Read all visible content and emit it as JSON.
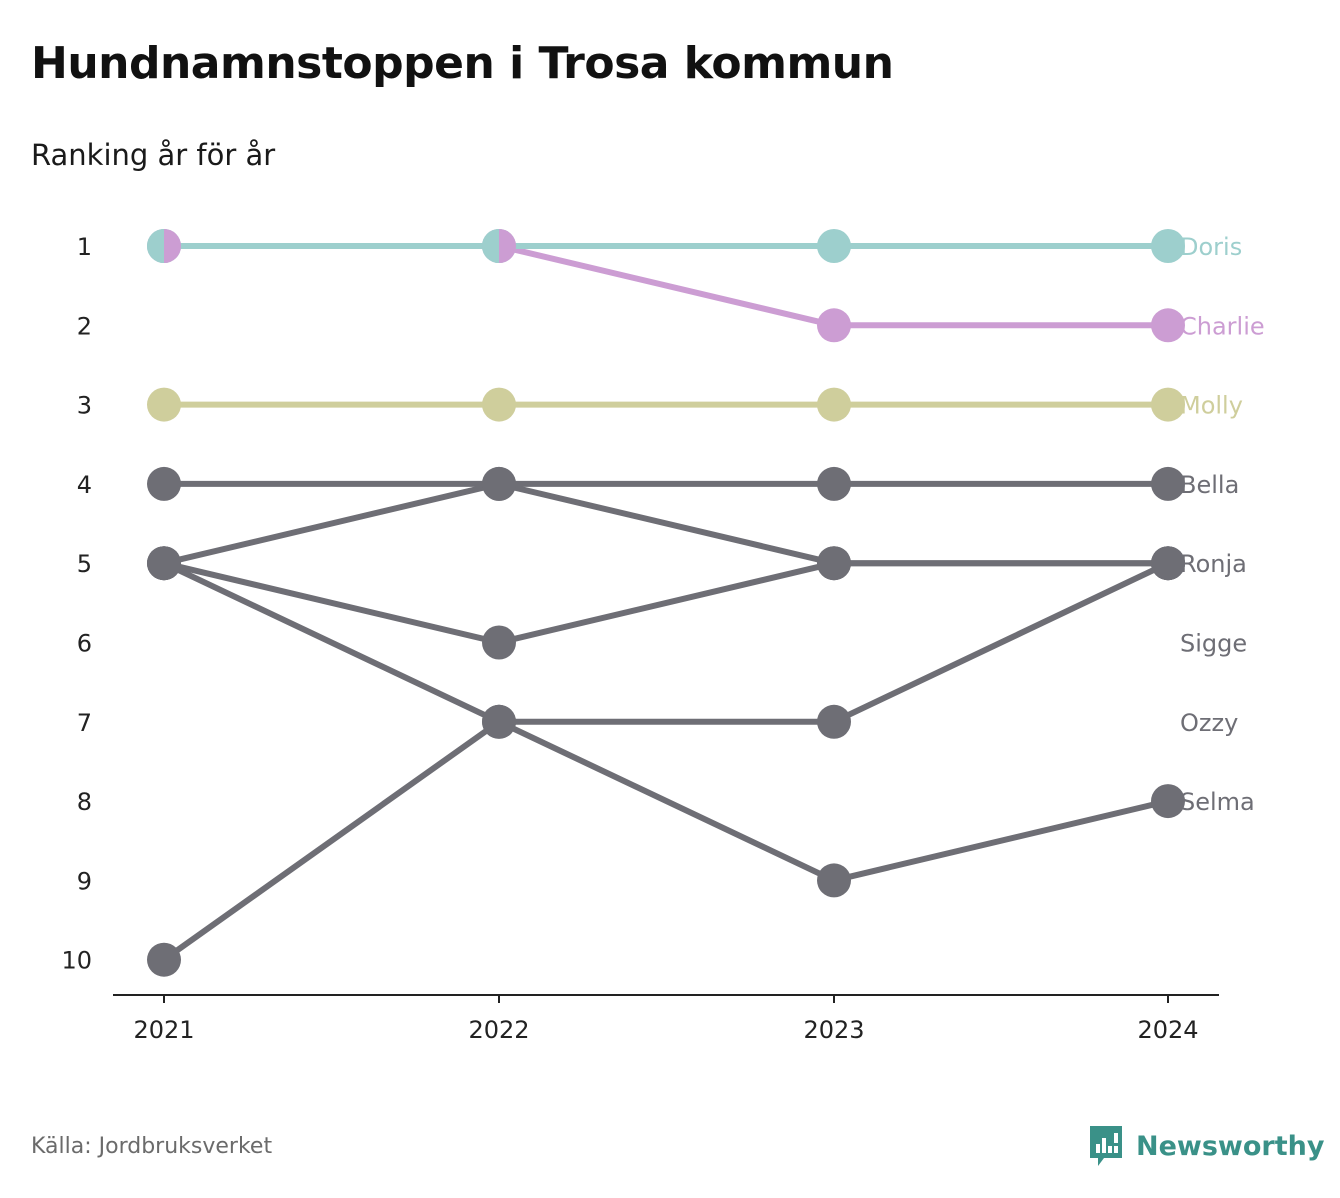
{
  "title": "Hundnamnstoppen i Trosa kommun",
  "subtitle": "Ranking år för år",
  "source": "Källa: Jordbruksverket",
  "brand": {
    "name": "Newsworthy",
    "logo_icon": "newsworthy-bar-chart-icon",
    "color": "#3a9188"
  },
  "chart_data": {
    "type": "line",
    "chart_kind": "bump chart (ranking)",
    "x": [
      "2021",
      "2022",
      "2023",
      "2024"
    ],
    "y_ticks": [
      "1",
      "2",
      "3",
      "4",
      "5",
      "6",
      "7",
      "8",
      "9",
      "10"
    ],
    "ylim": [
      1,
      10
    ],
    "y_reversed": true,
    "grid": false,
    "series_label_placement": "right end of each line",
    "series": [
      {
        "name": "Doris",
        "ranks": [
          1,
          1,
          1,
          1
        ],
        "color": "#9dcfcd"
      },
      {
        "name": "Charlie",
        "ranks": [
          1,
          1,
          2,
          2
        ],
        "color": "#cc9dd3"
      },
      {
        "name": "Molly",
        "ranks": [
          3,
          3,
          3,
          3
        ],
        "color": "#cfce9c"
      },
      {
        "name": "Bella",
        "ranks": [
          4,
          4,
          4,
          4
        ],
        "color": "#6e6e75"
      },
      {
        "name": "Ronja",
        "ranks": [
          10,
          7,
          7,
          5
        ],
        "color": "#6e6e75"
      },
      {
        "name": "Sigge",
        "ranks": [
          5,
          4,
          5,
          5
        ],
        "color": "#6e6e75"
      },
      {
        "name": "Ozzy",
        "ranks": [
          5,
          6,
          5,
          5
        ],
        "color": "#6e6e75"
      },
      {
        "name": "Selma",
        "ranks": [
          5,
          7,
          9,
          8
        ],
        "color": "#6e6e75"
      }
    ],
    "end_labels": [
      {
        "text": "Doris",
        "rank": 1,
        "color": "#9dcfcd"
      },
      {
        "text": "Charlie",
        "rank": 2,
        "color": "#cc9dd3"
      },
      {
        "text": "Molly",
        "rank": 3,
        "color": "#cfce9c"
      },
      {
        "text": "Bella",
        "rank": 4,
        "color": "#6e6e75"
      },
      {
        "text": "Ronja",
        "rank": 5,
        "color": "#6e6e75"
      },
      {
        "text": "Sigge",
        "rank": 6,
        "color": "#6e6e75"
      },
      {
        "text": "Ozzy",
        "rank": 7,
        "color": "#6e6e75"
      },
      {
        "text": "Selma",
        "rank": 8,
        "color": "#6e6e75"
      }
    ],
    "split_markers": [
      {
        "x": "2021",
        "rank": 1,
        "colors": [
          "#9dcfcd",
          "#cc9dd3"
        ]
      },
      {
        "x": "2022",
        "rank": 1,
        "colors": [
          "#9dcfcd",
          "#cc9dd3"
        ]
      }
    ]
  }
}
